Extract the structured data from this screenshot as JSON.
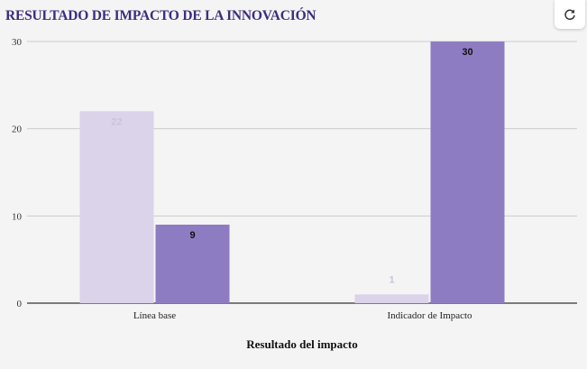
{
  "chart_data": {
    "type": "bar",
    "title": "RESULTADO DE IMPACTO DE LA INNOVACIÓN",
    "xlabel": "Resultado del impacto",
    "ylabel": "",
    "categories": [
      "Línea base",
      "Indicador de Impacto"
    ],
    "series": [
      {
        "color": "#dbd3ea",
        "label_color": "#c8c4dc",
        "values": [
          22,
          1
        ]
      },
      {
        "color": "#8e7cc3",
        "label_color": "#111111",
        "values": [
          9,
          30
        ]
      }
    ],
    "ylim": [
      0,
      30
    ],
    "yticks": [
      0,
      10,
      20,
      30
    ],
    "grid": true,
    "legend": "none"
  },
  "toolbar": {
    "refresh_icon": "refresh-icon"
  }
}
